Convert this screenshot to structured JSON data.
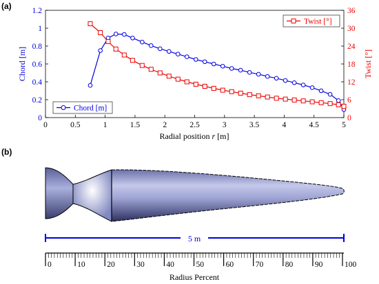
{
  "panel_a_label": "(a)",
  "panel_b_label": "(b)",
  "chart_data": {
    "type": "line",
    "xlabel_prefix": "Radial position ",
    "xlabel_var": "r",
    "xlabel_suffix": " [m]",
    "ylabel": "Chord [m]",
    "y2label": "Twist [°]",
    "xlim": [
      0,
      5
    ],
    "ylim": [
      0,
      1.2
    ],
    "y2lim": [
      0,
      36
    ],
    "xticks": [
      "0",
      "0.5",
      "1",
      "1.5",
      "2",
      "2.5",
      "3",
      "3.5",
      "4",
      "4.5",
      "5"
    ],
    "yticks": [
      "0",
      "0.2",
      "0.4",
      "0.6",
      "0.8",
      "1",
      "1.2"
    ],
    "y2ticks": [
      "0",
      "6",
      "12",
      "18",
      "24",
      "30",
      "36"
    ],
    "grid": false,
    "series": [
      {
        "name": "Chord [m]",
        "axis": "left",
        "color": "#0000dd",
        "marker": "circle",
        "legend_position": "bottom-left",
        "x": [
          0.75,
          0.92,
          1.05,
          1.18,
          1.32,
          1.46,
          1.62,
          1.77,
          1.92,
          2.07,
          2.22,
          2.37,
          2.52,
          2.67,
          2.82,
          2.97,
          3.12,
          3.27,
          3.42,
          3.57,
          3.72,
          3.87,
          4.02,
          4.17,
          4.32,
          4.47,
          4.62,
          4.77,
          4.91,
          5.0
        ],
        "values": [
          0.36,
          0.75,
          0.89,
          0.935,
          0.93,
          0.89,
          0.845,
          0.805,
          0.77,
          0.74,
          0.71,
          0.68,
          0.65,
          0.625,
          0.6,
          0.575,
          0.55,
          0.53,
          0.505,
          0.485,
          0.46,
          0.44,
          0.415,
          0.39,
          0.365,
          0.335,
          0.3,
          0.26,
          0.19,
          0.09
        ]
      },
      {
        "name": "Twist [°]",
        "axis": "right",
        "color": "#ee0000",
        "marker": "square",
        "legend_position": "top-right",
        "x": [
          0.75,
          0.92,
          1.05,
          1.18,
          1.32,
          1.46,
          1.62,
          1.77,
          1.92,
          2.07,
          2.22,
          2.37,
          2.52,
          2.67,
          2.82,
          2.97,
          3.12,
          3.27,
          3.42,
          3.57,
          3.72,
          3.87,
          4.02,
          4.17,
          4.32,
          4.47,
          4.62,
          4.77,
          4.91,
          5.0
        ],
        "values": [
          31.5,
          28.5,
          25.5,
          23.0,
          21.0,
          19.2,
          17.5,
          16.2,
          15.0,
          13.9,
          12.9,
          12.0,
          11.2,
          10.5,
          9.8,
          9.2,
          8.7,
          8.2,
          7.7,
          7.3,
          6.9,
          6.5,
          6.2,
          5.9,
          5.6,
          5.3,
          5.0,
          4.7,
          4.3,
          3.8
        ]
      }
    ]
  },
  "blade": {
    "length_label": "5 m",
    "scale_title": "Radius Percent",
    "scale_ticks": [
      "0",
      "10",
      "20",
      "30",
      "40",
      "50",
      "60",
      "70",
      "80",
      "90",
      "100"
    ],
    "color": "#8d93c8",
    "dimension_color": "#0000dd"
  }
}
